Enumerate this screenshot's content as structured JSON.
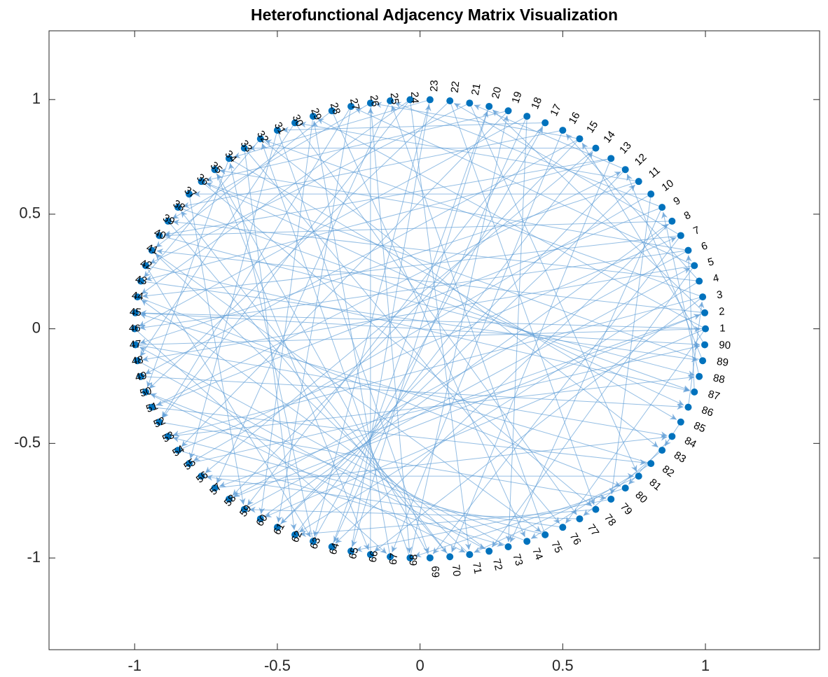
{
  "title": "Heterofunctional Adjacency Matrix Visualization",
  "colors": {
    "node": "#0072BD",
    "edge": "#5B9BD5",
    "axes": "#262626"
  },
  "x_axis": {
    "range": [
      -1.3,
      1.4
    ],
    "tick_labels": [
      {
        "v": -1,
        "t": "-1"
      },
      {
        "v": -0.5,
        "t": "-0.5"
      },
      {
        "v": 0,
        "t": "0"
      },
      {
        "v": 0.5,
        "t": "0.5"
      },
      {
        "v": 1,
        "t": "1"
      }
    ]
  },
  "y_axis": {
    "range": [
      -1.4,
      1.3
    ],
    "tick_labels": [
      {
        "v": 1,
        "t": "1"
      },
      {
        "v": 0.5,
        "t": "0.5"
      },
      {
        "v": 0,
        "t": "0"
      },
      {
        "v": -0.5,
        "t": "-0.5"
      },
      {
        "v": -1,
        "t": "-1"
      }
    ]
  },
  "diagram": {
    "layout": "circle",
    "node_count": 90,
    "node_labels": [
      "1",
      "2",
      "3",
      "4",
      "5",
      "6",
      "7",
      "8",
      "9",
      "10",
      "11",
      "12",
      "13",
      "14",
      "15",
      "16",
      "17",
      "18",
      "19",
      "20",
      "21",
      "22",
      "23",
      "24",
      "25",
      "26",
      "27",
      "28",
      "29",
      "30",
      "31",
      "32",
      "33",
      "34",
      "35",
      "36",
      "37",
      "38",
      "39",
      "40",
      "41",
      "42",
      "43",
      "44",
      "45",
      "46",
      "47",
      "48",
      "49",
      "50",
      "51",
      "52",
      "53",
      "54",
      "55",
      "56",
      "57",
      "58",
      "59",
      "60",
      "61",
      "62",
      "63",
      "64",
      "65",
      "66",
      "67",
      "68",
      "69",
      "70",
      "71",
      "72",
      "73",
      "74",
      "75",
      "76",
      "77",
      "78",
      "79",
      "80",
      "81",
      "82",
      "83",
      "84",
      "85",
      "86",
      "87",
      "88",
      "89",
      "90"
    ],
    "edges": [
      [
        1,
        29
      ],
      [
        1,
        45
      ],
      [
        1,
        60
      ],
      [
        1,
        76
      ],
      [
        2,
        20
      ],
      [
        2,
        41
      ],
      [
        2,
        57
      ],
      [
        3,
        32
      ],
      [
        3,
        53
      ],
      [
        3,
        66
      ],
      [
        4,
        16
      ],
      [
        4,
        39
      ],
      [
        4,
        62
      ],
      [
        5,
        27
      ],
      [
        5,
        48
      ],
      [
        5,
        72
      ],
      [
        6,
        35
      ],
      [
        6,
        58
      ],
      [
        7,
        22
      ],
      [
        7,
        44
      ],
      [
        7,
        69
      ],
      [
        8,
        40
      ],
      [
        8,
        64
      ],
      [
        9,
        25
      ],
      [
        9,
        51
      ],
      [
        10,
        37
      ],
      [
        10,
        55
      ],
      [
        10,
        79
      ],
      [
        11,
        30
      ],
      [
        11,
        47
      ],
      [
        12,
        21
      ],
      [
        12,
        61
      ],
      [
        13,
        43
      ],
      [
        13,
        70
      ],
      [
        14,
        33
      ],
      [
        14,
        56
      ],
      [
        15,
        26
      ],
      [
        15,
        49
      ],
      [
        16,
        38
      ],
      [
        16,
        67
      ],
      [
        17,
        31
      ],
      [
        17,
        59
      ],
      [
        18,
        46
      ],
      [
        18,
        73
      ],
      [
        19,
        36
      ],
      [
        19,
        54
      ],
      [
        20,
        65
      ],
      [
        21,
        42
      ],
      [
        21,
        81
      ],
      [
        22,
        50
      ],
      [
        23,
        34
      ],
      [
        23,
        63
      ],
      [
        24,
        44
      ],
      [
        24,
        71
      ],
      [
        25,
        57
      ],
      [
        26,
        39
      ],
      [
        26,
        68
      ],
      [
        27,
        52
      ],
      [
        28,
        41
      ],
      [
        28,
        74
      ],
      [
        29,
        60
      ],
      [
        30,
        48
      ],
      [
        30,
        77
      ],
      [
        31,
        55
      ],
      [
        32,
        43
      ],
      [
        32,
        83
      ],
      [
        33,
        62
      ],
      [
        34,
        50
      ],
      [
        34,
        85
      ],
      [
        35,
        66
      ],
      [
        36,
        78
      ],
      [
        37,
        59
      ],
      [
        38,
        87
      ],
      [
        39,
        70
      ],
      [
        40,
        88
      ],
      [
        41,
        75
      ],
      [
        42,
        63
      ],
      [
        43,
        89
      ],
      [
        44,
        80
      ],
      [
        45,
        90
      ],
      [
        46,
        67
      ],
      [
        47,
        84
      ],
      [
        48,
        72
      ],
      [
        49,
        86
      ],
      [
        50,
        71
      ],
      [
        51,
        82
      ],
      [
        52,
        79
      ],
      [
        53,
        88
      ],
      [
        54,
        73
      ],
      [
        55,
        90
      ],
      [
        56,
        81
      ],
      [
        57,
        84
      ],
      [
        58,
        2
      ],
      [
        59,
        5
      ],
      [
        60,
        8
      ],
      [
        61,
        11
      ],
      [
        62,
        14
      ],
      [
        63,
        17
      ],
      [
        64,
        20
      ],
      [
        65,
        23
      ],
      [
        66,
        26
      ],
      [
        67,
        29
      ],
      [
        68,
        32
      ],
      [
        69,
        35
      ],
      [
        70,
        38
      ],
      [
        71,
        41
      ],
      [
        72,
        44
      ],
      [
        73,
        47
      ],
      [
        74,
        50
      ],
      [
        75,
        53
      ],
      [
        76,
        56
      ],
      [
        77,
        59
      ],
      [
        78,
        62
      ],
      [
        79,
        65
      ],
      [
        80,
        68
      ],
      [
        81,
        71
      ],
      [
        82,
        74
      ],
      [
        83,
        77
      ],
      [
        84,
        80
      ],
      [
        85,
        83
      ],
      [
        86,
        3
      ],
      [
        87,
        6
      ],
      [
        88,
        9
      ],
      [
        89,
        12
      ],
      [
        90,
        15
      ],
      [
        24,
        52
      ],
      [
        18,
        64
      ],
      [
        13,
        40
      ],
      [
        6,
        46
      ],
      [
        9,
        73
      ],
      [
        36,
        86
      ],
      [
        27,
        61
      ],
      [
        42,
        87
      ],
      [
        15,
        58
      ],
      [
        22,
        78
      ],
      [
        31,
        69
      ],
      [
        47,
        1
      ],
      [
        51,
        12
      ],
      [
        63,
        34
      ],
      [
        68,
        19
      ],
      [
        75,
        25
      ],
      [
        82,
        45
      ],
      [
        89,
        36
      ],
      [
        54,
        7
      ],
      [
        33,
        76
      ]
    ]
  }
}
